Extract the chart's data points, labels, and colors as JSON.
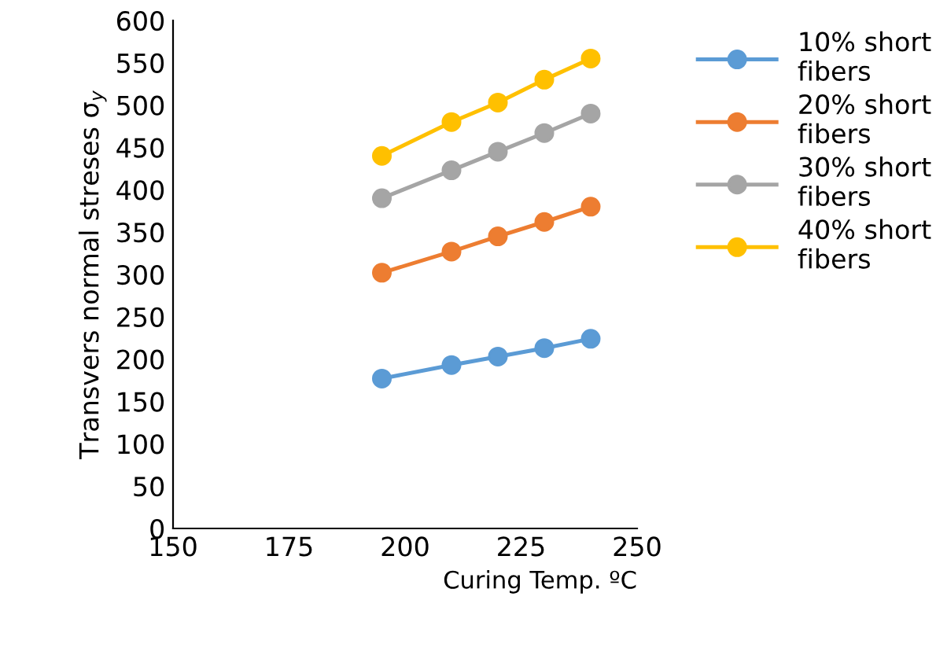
{
  "chart_data": {
    "type": "line",
    "xlabel": "Curing Temp. ºC",
    "ylabel": "Transvers normal streses σ$_{y}$",
    "x": [
      195,
      210,
      220,
      230,
      240
    ],
    "series": [
      {
        "name": "10% short fibers",
        "color": "#5b9bd5",
        "values": [
          177,
          193,
          203,
          213,
          224
        ]
      },
      {
        "name": "20% short fibers",
        "color": "#ed7d31",
        "values": [
          302,
          327,
          345,
          362,
          380
        ]
      },
      {
        "name": "30% short fibers",
        "color": "#a5a5a5",
        "values": [
          390,
          423,
          445,
          467,
          490
        ]
      },
      {
        "name": "40% short fibers",
        "color": "#ffc000",
        "values": [
          440,
          480,
          503,
          530,
          555
        ]
      }
    ],
    "xlim": [
      150,
      250
    ],
    "xticks": [
      150,
      175,
      200,
      225,
      250
    ],
    "ylim": [
      0,
      600
    ],
    "yticks": [
      0,
      50,
      100,
      150,
      200,
      250,
      300,
      350,
      400,
      450,
      500,
      550,
      600
    ],
    "grid": false,
    "legend": "right",
    "marker": "circle",
    "line_style": "solid"
  }
}
